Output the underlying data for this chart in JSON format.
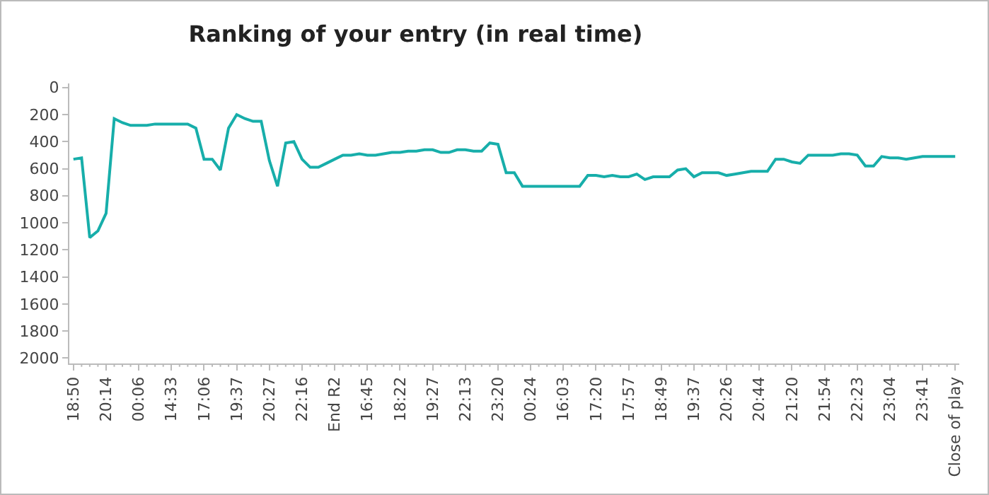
{
  "chart_data": {
    "type": "line",
    "title": "Ranking of your entry (in real time)",
    "categories": [
      "18:50",
      null,
      null,
      null,
      "20:14",
      null,
      null,
      null,
      "00:06",
      null,
      null,
      null,
      "14:33",
      null,
      null,
      null,
      "17:06",
      null,
      null,
      null,
      "19:37",
      null,
      null,
      null,
      "20:27",
      null,
      null,
      null,
      "22:16",
      null,
      null,
      null,
      "End R2",
      null,
      null,
      null,
      "16:45",
      null,
      null,
      null,
      "18:22",
      null,
      null,
      null,
      "19:27",
      null,
      null,
      null,
      "22:13",
      null,
      null,
      null,
      "23:20",
      null,
      null,
      null,
      "00:24",
      null,
      null,
      null,
      "16:03",
      null,
      null,
      null,
      "17:20",
      null,
      null,
      null,
      "17:57",
      null,
      null,
      null,
      "18:49",
      null,
      null,
      null,
      "19:37",
      null,
      null,
      null,
      "20:26",
      null,
      null,
      null,
      "20:44",
      null,
      null,
      null,
      "21:20",
      null,
      null,
      null,
      "21:54",
      null,
      null,
      null,
      "22:23",
      null,
      null,
      null,
      "23:04",
      null,
      null,
      null,
      "23:41",
      null,
      null,
      null,
      "Close of play"
    ],
    "series": [
      {
        "color": "#17aeaa",
        "values": [
          530,
          520,
          1110,
          1060,
          930,
          230,
          260,
          280,
          280,
          280,
          270,
          270,
          270,
          270,
          270,
          300,
          530,
          530,
          610,
          300,
          200,
          230,
          250,
          250,
          540,
          730,
          410,
          400,
          530,
          590,
          590,
          560,
          530,
          500,
          500,
          490,
          500,
          500,
          490,
          480,
          480,
          470,
          470,
          460,
          460,
          480,
          480,
          460,
          460,
          470,
          470,
          410,
          420,
          630,
          630,
          730,
          730,
          730,
          730,
          730,
          730,
          730,
          730,
          650,
          650,
          660,
          650,
          660,
          660,
          640,
          680,
          660,
          660,
          660,
          610,
          600,
          660,
          630,
          630,
          630,
          650,
          640,
          630,
          620,
          620,
          620,
          530,
          530,
          550,
          560,
          500,
          500,
          500,
          500,
          490,
          490,
          500,
          580,
          580,
          510,
          520,
          520,
          530,
          520,
          510,
          510,
          510,
          510,
          510
        ]
      }
    ],
    "ylim": [
      2040,
      -30
    ],
    "yticks": [
      0,
      200,
      400,
      600,
      800,
      1000,
      1200,
      1400,
      1600,
      1800,
      2000
    ],
    "grid": false,
    "marker": "none",
    "line_style": "solid"
  }
}
